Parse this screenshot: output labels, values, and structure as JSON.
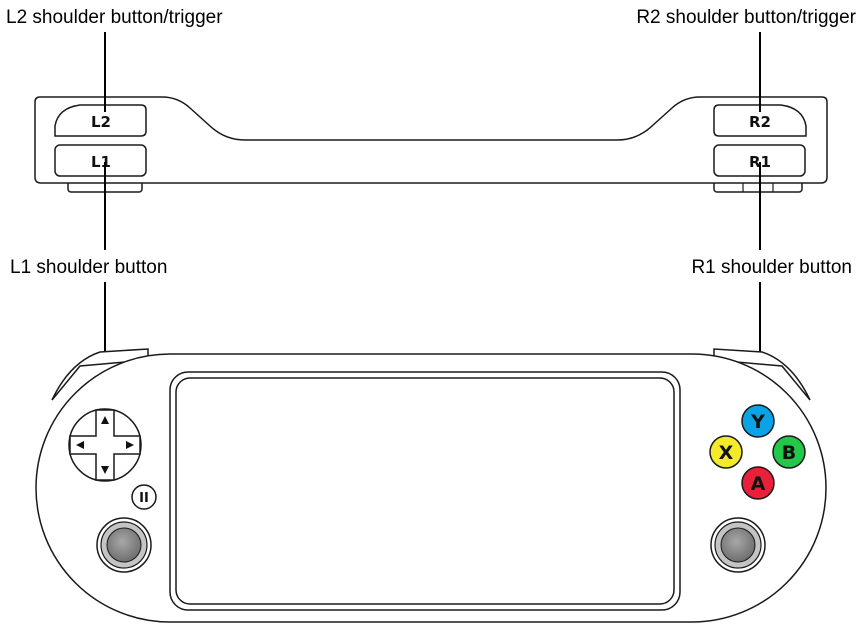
{
  "callouts": {
    "l2": "L2 shoulder button/trigger",
    "r2": "R2 shoulder button/trigger",
    "l1": "L1 shoulder button",
    "r1": "R1 shoulder button"
  },
  "buttons": {
    "l2": "L2",
    "l1": "L1",
    "r2": "R2",
    "r1": "R1",
    "pause": "II"
  },
  "face_buttons": {
    "y": {
      "label": "Y",
      "color": "#0aa4e6"
    },
    "x": {
      "label": "X",
      "color": "#f2ea2a"
    },
    "b": {
      "label": "B",
      "color": "#22c84a"
    },
    "a": {
      "label": "A",
      "color": "#e8203a"
    }
  },
  "colors": {
    "outline": "#1a1a1a",
    "stick_fill": "#8a8a8a",
    "stick_ring": "#bdbdbd"
  },
  "icons": {
    "dpad": "dpad-icon",
    "thumbstick": "thumbstick-icon",
    "pause": "pause-icon"
  }
}
